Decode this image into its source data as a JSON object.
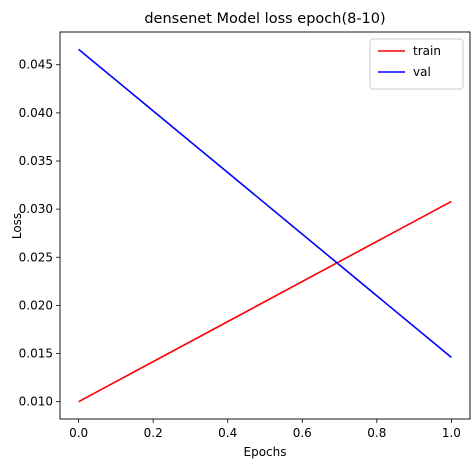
{
  "chart_data": {
    "type": "line",
    "title": "densenet Model loss epoch(8-10)",
    "xlabel": "Epochs",
    "ylabel": "Loss",
    "xlim": [
      -0.05,
      1.05
    ],
    "ylim": [
      0.0082,
      0.0484
    ],
    "xticks": [
      "0.0",
      "0.2",
      "0.4",
      "0.6",
      "0.8",
      "1.0"
    ],
    "yticks": [
      "0.010",
      "0.015",
      "0.020",
      "0.025",
      "0.030",
      "0.035",
      "0.040",
      "0.045"
    ],
    "x": [
      0,
      1
    ],
    "series": [
      {
        "name": "train",
        "color": "#ff0000",
        "values": [
          0.01,
          0.0308
        ]
      },
      {
        "name": "val",
        "color": "#0000ff",
        "values": [
          0.0466,
          0.0146
        ]
      }
    ],
    "grid": false,
    "legend": "top-right"
  }
}
